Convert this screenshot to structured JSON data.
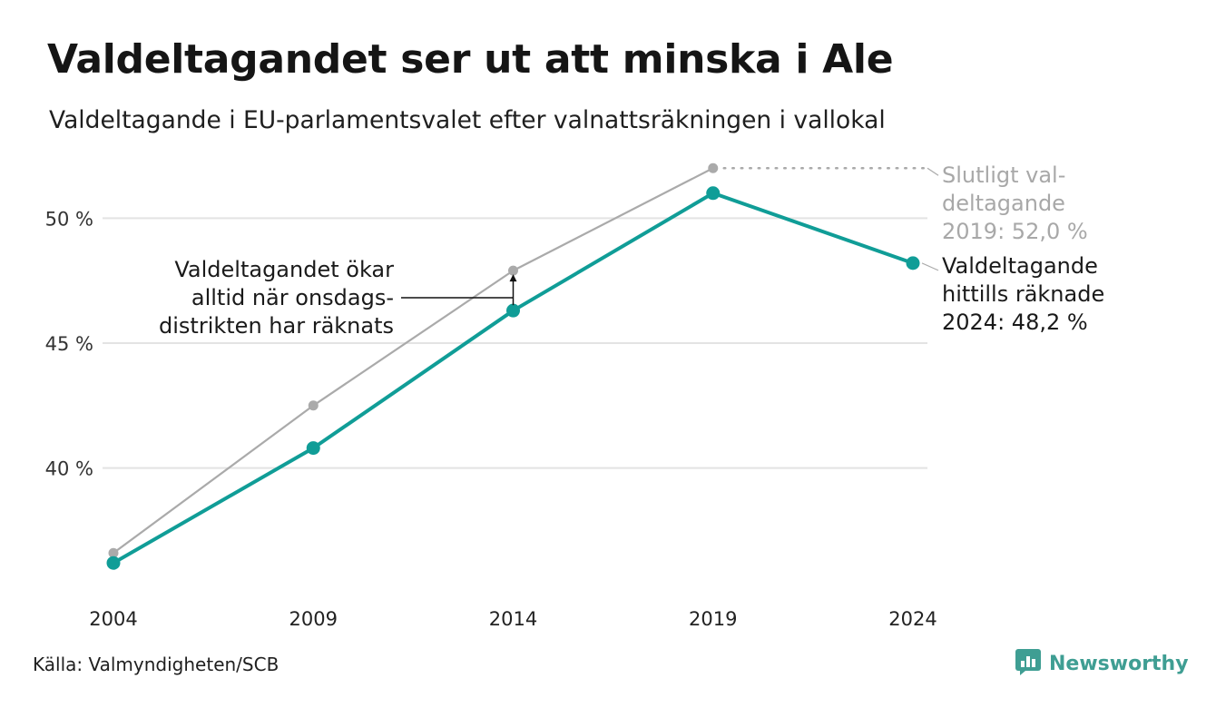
{
  "title": "Valdeltagandet ser ut att minska i Ale",
  "subtitle": "Valdeltagande i EU-parlamentsvalet efter valnattsräkningen i vallokal",
  "source": "Källa: Valmyndigheten/SCB",
  "brand": {
    "name": "Newsworthy",
    "icon": "newsworthy-logo-icon",
    "color": "#3f9e93"
  },
  "chart_data": {
    "type": "line",
    "x": [
      "2004",
      "2009",
      "2014",
      "2019",
      "2024"
    ],
    "y_ticks": [
      40,
      45,
      50
    ],
    "y_tick_labels": [
      "40 %",
      "45 %",
      "50 %"
    ],
    "ylim": [
      35.5,
      52.5
    ],
    "grid": true,
    "series": [
      {
        "name": "",
        "color": "#aaaaaa",
        "values": [
          36.6,
          42.5,
          47.9,
          52.0,
          null
        ]
      },
      {
        "name": "",
        "color": "#109d97",
        "values": [
          36.2,
          40.8,
          46.3,
          51.0,
          48.2
        ]
      }
    ],
    "annotations": {
      "final": [
        "Slutligt val-",
        "deltagande",
        "2019: 52,0 %"
      ],
      "counted": [
        "Valdeltagande",
        "hittills räknade",
        "2024: 48,2 %"
      ],
      "note": [
        "Valdeltagandet ökar",
        "alltid när onsdags-",
        "distrikten har räknats"
      ]
    }
  }
}
